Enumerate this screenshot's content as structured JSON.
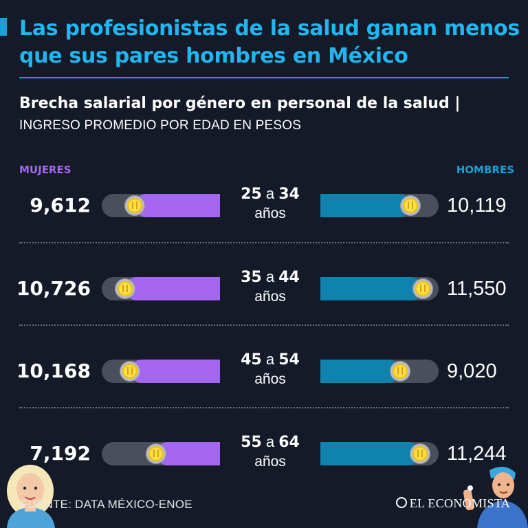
{
  "header": {
    "title": "Las profesionistas de la salud ganan menos que sus pares hombres en México",
    "subtitle": "Brecha salarial por género en personal de la salud |",
    "subtitle_light": "INGRESO PROMEDIO POR EDAD EN PESOS"
  },
  "legend": {
    "women": "MUJERES",
    "men": "HOMBRES"
  },
  "colors": {
    "women": "#a566f2",
    "men": "#0f82ad",
    "title": "#22b5ee",
    "background": "#151a28",
    "track": "#4a4f5c"
  },
  "rows": [
    {
      "age_from": "25",
      "connector": "a",
      "age_to": "34",
      "unit": "años",
      "women_label": "9,612",
      "men_label": "10,119"
    },
    {
      "age_from": "35",
      "connector": "a",
      "age_to": "44",
      "unit": "años",
      "women_label": "10,726",
      "men_label": "11,550"
    },
    {
      "age_from": "45",
      "connector": "a",
      "age_to": "54",
      "unit": "años",
      "women_label": "10,168",
      "men_label": "9,020"
    },
    {
      "age_from": "55",
      "connector": "a",
      "age_to": "64",
      "unit": "años",
      "women_label": "7,192",
      "men_label": "11,244"
    }
  ],
  "chart_data": {
    "type": "bar",
    "categories": [
      "25 a 34 años",
      "35 a 44 años",
      "45 a 54 años",
      "55 a 64 años"
    ],
    "series": [
      {
        "name": "MUJERES",
        "values": [
          9612,
          10726,
          10168,
          7192
        ]
      },
      {
        "name": "HOMBRES",
        "values": [
          10119,
          11550,
          9020,
          11244
        ]
      }
    ],
    "title": "Brecha salarial por género en personal de la salud",
    "ylabel": "INGRESO PROMEDIO POR EDAD EN PESOS",
    "grid": false,
    "legend": "top"
  },
  "footer": {
    "source": "FUENTE: DATA MÉXICO-ENOE",
    "brand": "EL ECONOMISTA"
  },
  "icons": {
    "coin": "peso-coin-icon",
    "brand": "el-economista-logo-icon"
  }
}
